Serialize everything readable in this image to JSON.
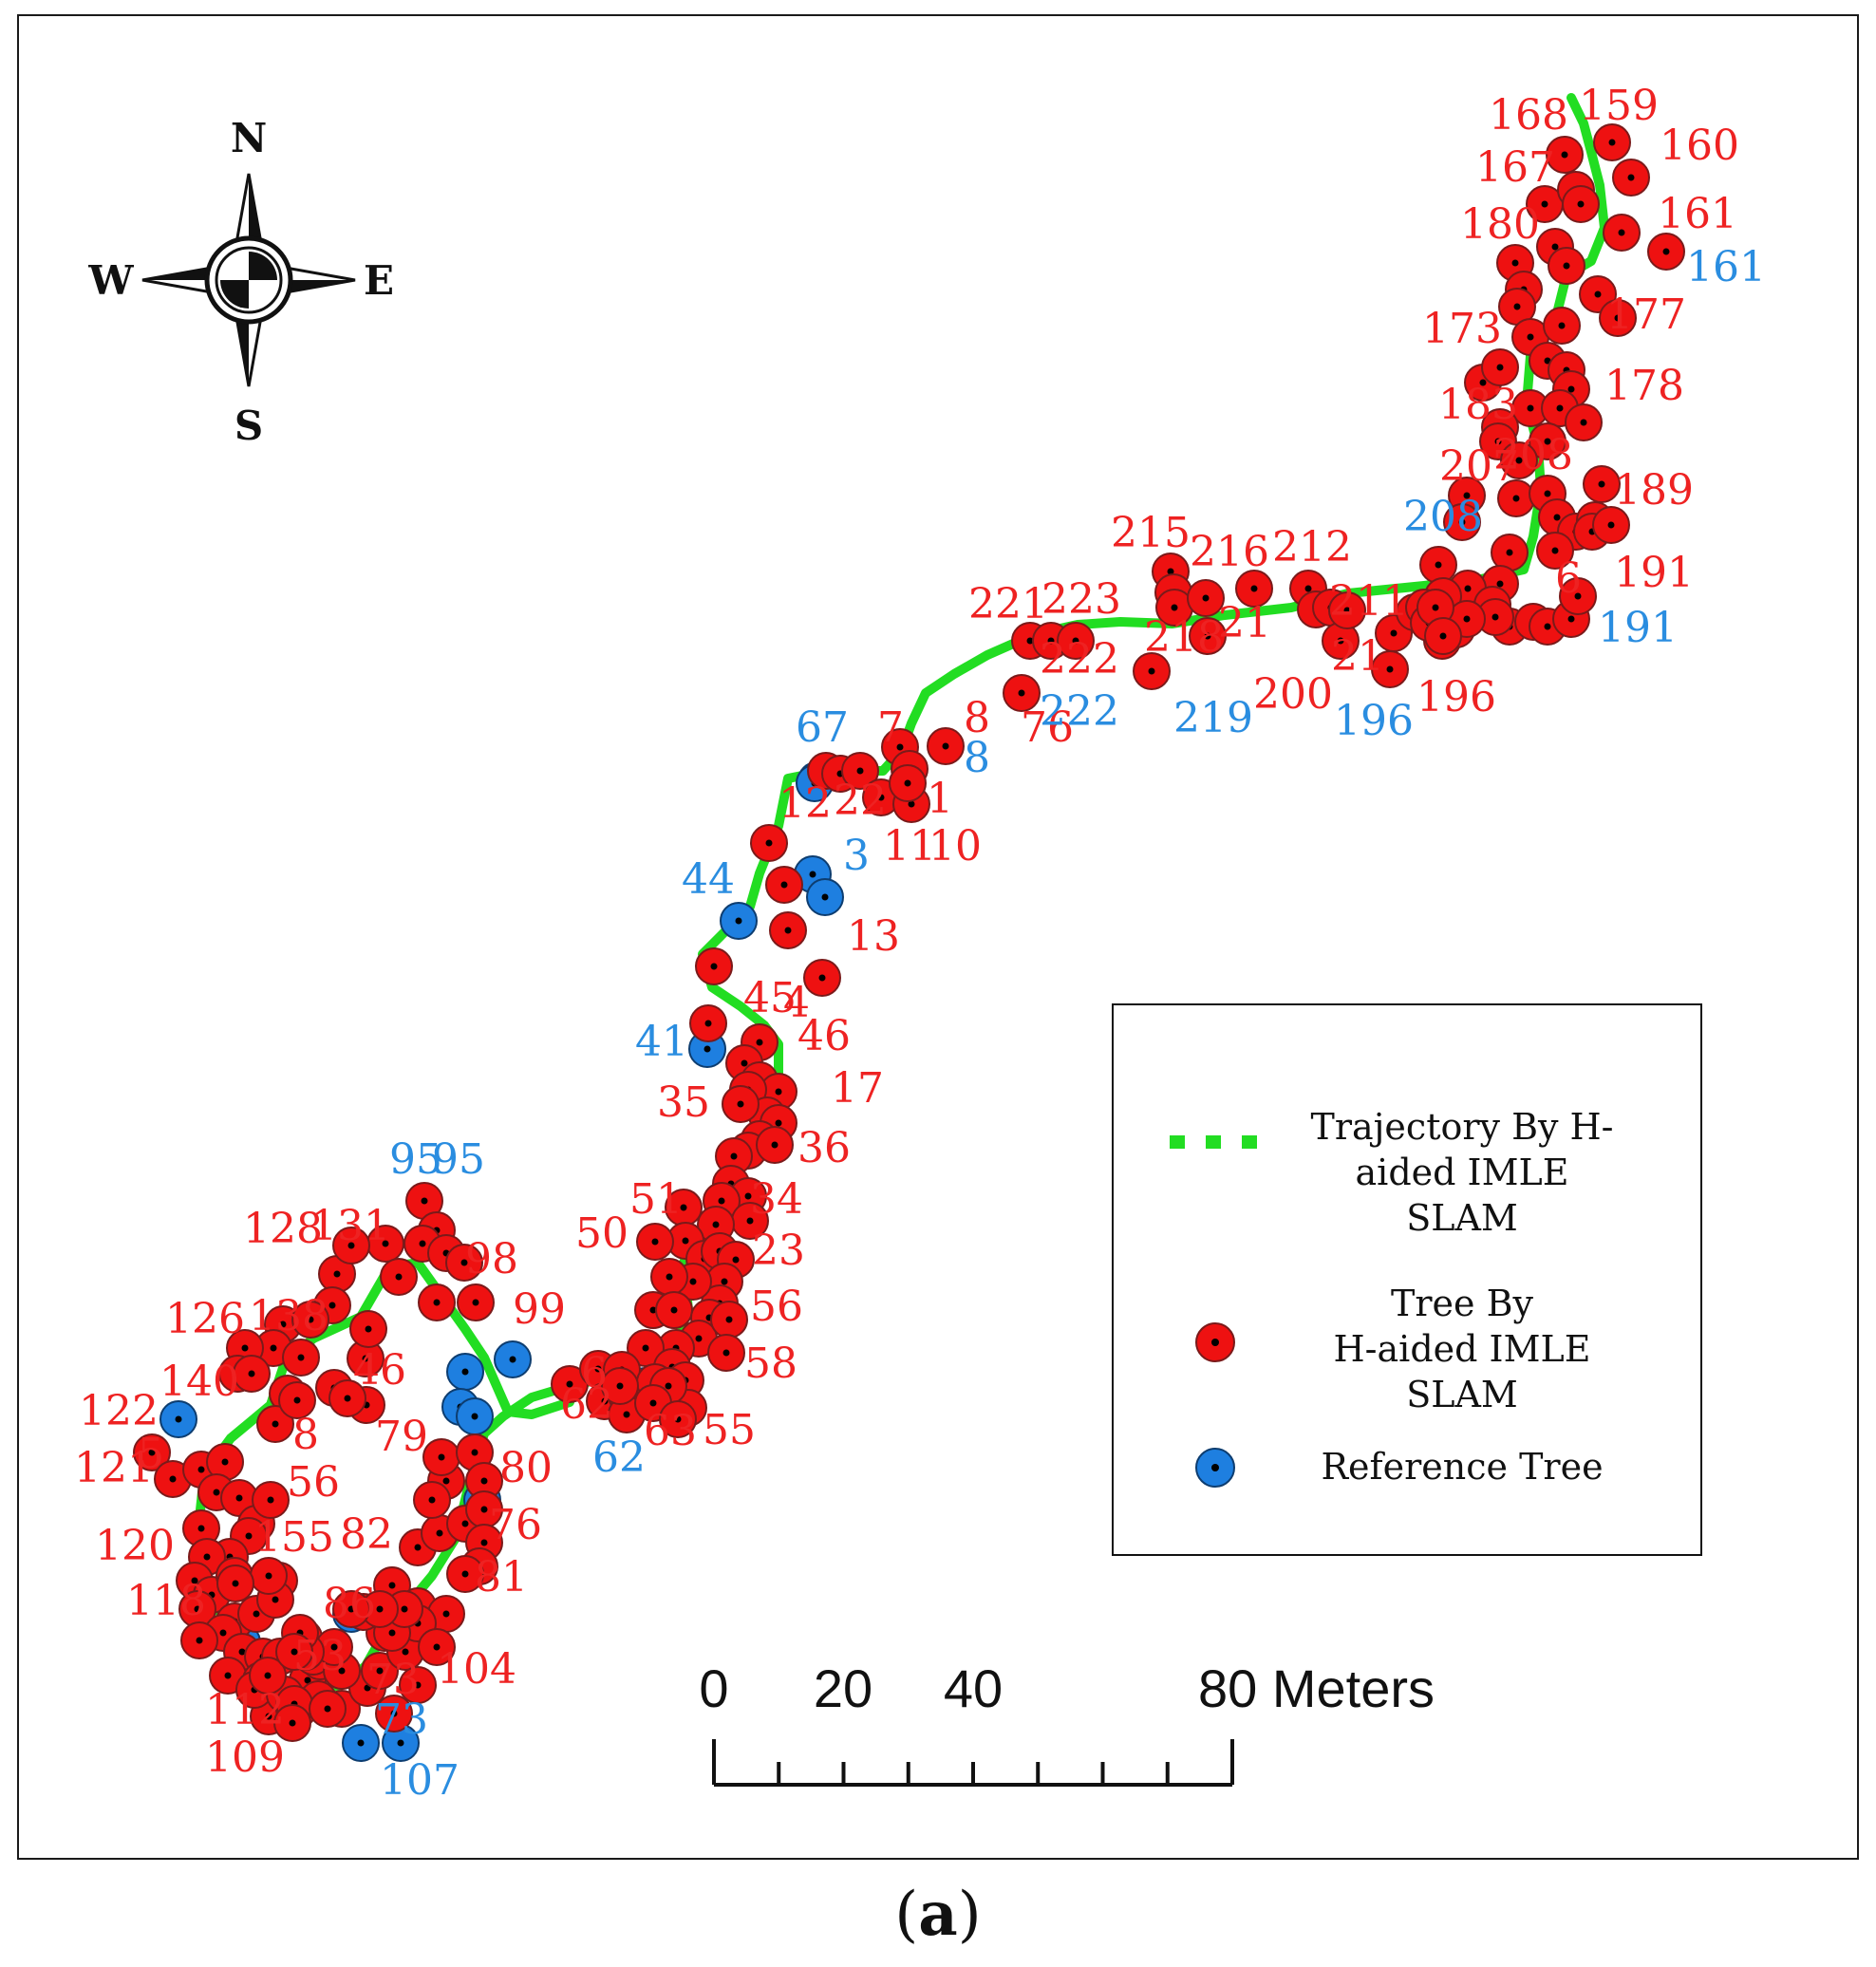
{
  "compass": {
    "n": "N",
    "s": "S",
    "e": "E",
    "w": "W"
  },
  "legend": {
    "trajectory_label": [
      "Trajectory By H-",
      "aided IMLE",
      "SLAM"
    ],
    "tree_label": [
      "Tree By",
      "H-aided IMLE",
      "SLAM"
    ],
    "reference_label": "Reference Tree"
  },
  "scale_bar": {
    "labels": [
      "0",
      "20",
      "40",
      "80 Meters"
    ],
    "ticks_m": [
      0,
      10,
      20,
      30,
      40,
      50,
      60,
      70,
      80
    ]
  },
  "caption": {
    "open": "(",
    "letter": "a",
    "close": ")"
  },
  "colors": {
    "tree": "#ee1111",
    "reference": "#1e7fe0",
    "trajectory": "#22dd22",
    "label_red": "#ee2222",
    "label_blue": "#2a8de0"
  },
  "trees_red": [
    [
      1698,
      150
    ],
    [
      1648,
      163
    ],
    [
      1718,
      187
    ],
    [
      1627,
      215
    ],
    [
      1660,
      200
    ],
    [
      1665,
      215
    ],
    [
      1708,
      245
    ],
    [
      1755,
      265
    ],
    [
      1596,
      277
    ],
    [
      1638,
      260
    ],
    [
      1650,
      280
    ],
    [
      1605,
      305
    ],
    [
      1598,
      323
    ],
    [
      1683,
      310
    ],
    [
      1704,
      335
    ],
    [
      1612,
      355
    ],
    [
      1645,
      343
    ],
    [
      1562,
      403
    ],
    [
      1580,
      387
    ],
    [
      1630,
      380
    ],
    [
      1650,
      390
    ],
    [
      1655,
      410
    ],
    [
      1612,
      430
    ],
    [
      1643,
      430
    ],
    [
      1668,
      445
    ],
    [
      1580,
      450
    ],
    [
      1578,
      465
    ],
    [
      1630,
      465
    ],
    [
      1600,
      485
    ],
    [
      1597,
      525
    ],
    [
      1630,
      520
    ],
    [
      1640,
      545
    ],
    [
      1660,
      560
    ],
    [
      1680,
      548
    ],
    [
      1687,
      510
    ],
    [
      1545,
      522
    ],
    [
      1540,
      550
    ],
    [
      1590,
      582
    ],
    [
      1638,
      580
    ],
    [
      1515,
      595
    ],
    [
      1580,
      615
    ],
    [
      1546,
      620
    ],
    [
      1572,
      637
    ],
    [
      1590,
      660
    ],
    [
      1520,
      628
    ],
    [
      1500,
      650
    ],
    [
      1519,
      675
    ],
    [
      1677,
      560
    ],
    [
      1697,
      553
    ],
    [
      1615,
      655
    ],
    [
      1630,
      660
    ],
    [
      1655,
      652
    ],
    [
      1662,
      628
    ],
    [
      1575,
      650
    ],
    [
      1233,
      602
    ],
    [
      1236,
      624
    ],
    [
      1237,
      640
    ],
    [
      1270,
      630
    ],
    [
      1321,
      620
    ],
    [
      1378,
      620
    ],
    [
      1386,
      642
    ],
    [
      1402,
      640
    ],
    [
      1412,
      675
    ],
    [
      1419,
      643
    ],
    [
      1468,
      667
    ],
    [
      1464,
      705
    ],
    [
      1490,
      645
    ],
    [
      1500,
      640
    ],
    [
      1505,
      656
    ],
    [
      1534,
      663
    ],
    [
      1545,
      652
    ],
    [
      1512,
      640
    ],
    [
      1520,
      670
    ],
    [
      1213,
      707
    ],
    [
      1272,
      670
    ],
    [
      1085,
      675
    ],
    [
      1107,
      675
    ],
    [
      1133,
      675
    ],
    [
      1076,
      730
    ],
    [
      870,
      812
    ],
    [
      885,
      815
    ],
    [
      906,
      812
    ],
    [
      948,
      787
    ],
    [
      996,
      786
    ],
    [
      958,
      810
    ],
    [
      928,
      840
    ],
    [
      960,
      847
    ],
    [
      956,
      825
    ],
    [
      810,
      888
    ],
    [
      826,
      932
    ],
    [
      830,
      980
    ],
    [
      866,
      1030
    ],
    [
      752,
      1018
    ],
    [
      746,
      1078
    ],
    [
      800,
      1098
    ],
    [
      784,
      1120
    ],
    [
      800,
      1138
    ],
    [
      820,
      1150
    ],
    [
      788,
      1148
    ],
    [
      808,
      1175
    ],
    [
      780,
      1163
    ],
    [
      820,
      1183
    ],
    [
      800,
      1200
    ],
    [
      788,
      1212
    ],
    [
      816,
      1206
    ],
    [
      773,
      1218
    ],
    [
      770,
      1247
    ],
    [
      788,
      1260
    ],
    [
      760,
      1265
    ],
    [
      790,
      1286
    ],
    [
      754,
      1290
    ],
    [
      720,
      1272
    ],
    [
      722,
      1307
    ],
    [
      742,
      1326
    ],
    [
      758,
      1318
    ],
    [
      775,
      1327
    ],
    [
      763,
      1350
    ],
    [
      758,
      1373
    ],
    [
      730,
      1350
    ],
    [
      705,
      1345
    ],
    [
      690,
      1308
    ],
    [
      688,
      1380
    ],
    [
      710,
      1380
    ],
    [
      747,
      1388
    ],
    [
      736,
      1410
    ],
    [
      768,
      1390
    ],
    [
      765,
      1425
    ],
    [
      712,
      1420
    ],
    [
      680,
      1420
    ],
    [
      708,
      1440
    ],
    [
      600,
      1458
    ],
    [
      630,
      1442
    ],
    [
      655,
      1443
    ],
    [
      637,
      1476
    ],
    [
      660,
      1470
    ],
    [
      690,
      1456
    ],
    [
      722,
      1454
    ],
    [
      660,
      1490
    ],
    [
      725,
      1483
    ],
    [
      704,
      1460
    ],
    [
      688,
      1478
    ],
    [
      653,
      1460
    ],
    [
      714,
      1495
    ],
    [
      447,
      1265
    ],
    [
      460,
      1296
    ],
    [
      445,
      1310
    ],
    [
      470,
      1320
    ],
    [
      489,
      1330
    ],
    [
      501,
      1372
    ],
    [
      460,
      1372
    ],
    [
      406,
      1310
    ],
    [
      420,
      1345
    ],
    [
      355,
      1342
    ],
    [
      370,
      1312
    ],
    [
      350,
      1375
    ],
    [
      298,
      1395
    ],
    [
      288,
      1420
    ],
    [
      258,
      1420
    ],
    [
      250,
      1447
    ],
    [
      265,
      1447
    ],
    [
      327,
      1390
    ],
    [
      317,
      1430
    ],
    [
      303,
      1468
    ],
    [
      290,
      1500
    ],
    [
      313,
      1475
    ],
    [
      352,
      1462
    ],
    [
      385,
      1431
    ],
    [
      386,
      1480
    ],
    [
      388,
      1400
    ],
    [
      366,
      1473
    ],
    [
      160,
      1530
    ],
    [
      182,
      1558
    ],
    [
      212,
      1548
    ],
    [
      237,
      1540
    ],
    [
      228,
      1572
    ],
    [
      252,
      1578
    ],
    [
      270,
      1605
    ],
    [
      285,
      1580
    ],
    [
      262,
      1618
    ],
    [
      242,
      1640
    ],
    [
      212,
      1610
    ],
    [
      218,
      1640
    ],
    [
      205,
      1665
    ],
    [
      223,
      1680
    ],
    [
      208,
      1695
    ],
    [
      247,
      1708
    ],
    [
      270,
      1700
    ],
    [
      235,
      1720
    ],
    [
      255,
      1740
    ],
    [
      240,
      1765
    ],
    [
      277,
      1745
    ],
    [
      294,
      1665
    ],
    [
      290,
      1685
    ],
    [
      247,
      1660
    ],
    [
      210,
      1728
    ],
    [
      275,
      1770
    ],
    [
      320,
      1725
    ],
    [
      295,
      1745
    ],
    [
      283,
      1660
    ],
    [
      248,
      1668
    ],
    [
      324,
      1770
    ],
    [
      315,
      1800
    ],
    [
      283,
      1808
    ],
    [
      268,
      1780
    ],
    [
      310,
      1800
    ],
    [
      300,
      1785
    ],
    [
      335,
      1790
    ],
    [
      282,
      1765
    ],
    [
      337,
      1750
    ],
    [
      330,
      1745
    ],
    [
      360,
      1800
    ],
    [
      387,
      1778
    ],
    [
      360,
      1760
    ],
    [
      400,
      1760
    ],
    [
      427,
      1740
    ],
    [
      405,
      1720
    ],
    [
      383,
      1698
    ],
    [
      413,
      1670
    ],
    [
      440,
      1692
    ],
    [
      440,
      1630
    ],
    [
      463,
      1615
    ],
    [
      490,
      1605
    ],
    [
      470,
      1560
    ],
    [
      465,
      1535
    ],
    [
      455,
      1580
    ],
    [
      500,
      1530
    ],
    [
      510,
      1560
    ],
    [
      510,
      1590
    ],
    [
      510,
      1625
    ],
    [
      505,
      1650
    ],
    [
      490,
      1658
    ],
    [
      470,
      1700
    ],
    [
      440,
      1710
    ],
    [
      460,
      1735
    ],
    [
      413,
      1720
    ],
    [
      426,
      1695
    ],
    [
      400,
      1695
    ],
    [
      370,
      1695
    ],
    [
      415,
      1805
    ],
    [
      440,
      1775
    ],
    [
      352,
      1735
    ],
    [
      322,
      1740
    ],
    [
      316,
      1720
    ],
    [
      310,
      1740
    ],
    [
      310,
      1795
    ],
    [
      308,
      1815
    ],
    [
      345,
      1800
    ]
  ],
  "trees_blue": [
    [
      860,
      822
    ],
    [
      858,
      825
    ],
    [
      856,
      921
    ],
    [
      869,
      945
    ],
    [
      778,
      970
    ],
    [
      745,
      1105
    ],
    [
      508,
      1580
    ],
    [
      490,
      1445
    ],
    [
      540,
      1432
    ],
    [
      188,
      1495
    ],
    [
      255,
      1730
    ],
    [
      380,
      1836
    ],
    [
      422,
      1836
    ],
    [
      370,
      1700
    ],
    [
      485,
      1482
    ],
    [
      500,
      1492
    ],
    [
      680,
      1460
    ]
  ],
  "labels_red": [
    [
      "168",
      1568,
      120
    ],
    [
      "159",
      1663,
      110
    ],
    [
      "160",
      1748,
      152
    ],
    [
      "167",
      1554,
      175
    ],
    [
      "180",
      1538,
      235
    ],
    [
      "161",
      1746,
      224
    ],
    [
      "173",
      1498,
      345
    ],
    [
      "177",
      1692,
      330
    ],
    [
      "178",
      1690,
      405
    ],
    [
      "183",
      1515,
      425
    ],
    [
      "207",
      1516,
      490
    ],
    [
      "208",
      1573,
      478
    ],
    [
      "189",
      1700,
      515
    ],
    [
      "215",
      1170,
      560
    ],
    [
      "216",
      1253,
      580
    ],
    [
      "212",
      1340,
      575
    ],
    [
      "221",
      1020,
      635
    ],
    [
      "223",
      1097,
      630
    ],
    [
      "222",
      1095,
      693
    ],
    [
      "218",
      1205,
      670
    ],
    [
      "21",
      1283,
      655
    ],
    [
      "211",
      1400,
      632
    ],
    [
      "200",
      1320,
      730
    ],
    [
      "21",
      1402,
      690
    ],
    [
      "196",
      1492,
      733
    ],
    [
      "191",
      1700,
      602
    ],
    [
      "6",
      1638,
      608
    ],
    [
      "76",
      1075,
      765
    ],
    [
      "7",
      924,
      765
    ],
    [
      "8",
      1015,
      755
    ],
    [
      "12",
      820,
      845
    ],
    [
      "22",
      878,
      842
    ],
    [
      "1",
      976,
      840
    ],
    [
      "11",
      930,
      890
    ],
    [
      "10",
      978,
      890
    ],
    [
      "13",
      892,
      985
    ],
    [
      "4",
      825,
      1055
    ],
    [
      "45",
      783,
      1050
    ],
    [
      "46",
      840,
      1090
    ],
    [
      "17",
      875,
      1145
    ],
    [
      "35",
      692,
      1160
    ],
    [
      "36",
      840,
      1208
    ],
    [
      "34",
      790,
      1262
    ],
    [
      "23",
      792,
      1316
    ],
    [
      "51",
      663,
      1262
    ],
    [
      "50",
      606,
      1298
    ],
    [
      "56",
      790,
      1375
    ],
    [
      "58",
      784,
      1435
    ],
    [
      "55",
      740,
      1505
    ],
    [
      "63",
      678,
      1506
    ],
    [
      "62",
      590,
      1478
    ],
    [
      "6",
      612,
      1445
    ],
    [
      "128",
      256,
      1293
    ],
    [
      "131",
      327,
      1290
    ],
    [
      "98",
      490,
      1325
    ],
    [
      "99",
      540,
      1378
    ],
    [
      "126",
      174,
      1388
    ],
    [
      "138",
      262,
      1385
    ],
    [
      "46",
      372,
      1442
    ],
    [
      "140",
      168,
      1454
    ],
    [
      "122",
      83,
      1485
    ],
    [
      "121",
      78,
      1545
    ],
    [
      "79",
      395,
      1512
    ],
    [
      "80",
      526,
      1545
    ],
    [
      "56",
      302,
      1560
    ],
    [
      "8",
      308,
      1510
    ],
    [
      "76",
      515,
      1605
    ],
    [
      "120",
      100,
      1627
    ],
    [
      "155",
      268,
      1618
    ],
    [
      "82",
      358,
      1615
    ],
    [
      "81",
      500,
      1660
    ],
    [
      "118",
      133,
      1685
    ],
    [
      "86",
      340,
      1688
    ],
    [
      "104",
      460,
      1757
    ],
    [
      "73",
      386,
      1768
    ],
    [
      "53",
      309,
      1743
    ],
    [
      "112",
      216,
      1800
    ],
    [
      "109",
      216,
      1850
    ],
    [
      "5",
      145,
      1530
    ]
  ],
  "labels_blue": [
    [
      "67",
      838,
      765
    ],
    [
      "8",
      1015,
      797
    ],
    [
      "222",
      1095,
      748
    ],
    [
      "219",
      1236,
      755
    ],
    [
      "196",
      1405,
      758
    ],
    [
      "191",
      1683,
      660
    ],
    [
      "161",
      1776,
      280
    ],
    [
      "208",
      1478,
      543
    ],
    [
      "3",
      888,
      900
    ],
    [
      "44",
      718,
      925
    ],
    [
      "41",
      669,
      1096
    ],
    [
      "95",
      410,
      1220
    ],
    [
      "95",
      455,
      1220
    ],
    [
      "62",
      624,
      1534
    ],
    [
      "73",
      395,
      1810
    ],
    [
      "107",
      400,
      1874
    ]
  ],
  "trajectory_m": [
    [
      1655,
      103
    ],
    [
      1668,
      130
    ],
    [
      1676,
      160
    ],
    [
      1685,
      195
    ],
    [
      1690,
      240
    ],
    [
      1676,
      275
    ],
    [
      1650,
      290
    ],
    [
      1640,
      330
    ],
    [
      1612,
      375
    ],
    [
      1608,
      425
    ],
    [
      1620,
      470
    ],
    [
      1623,
      515
    ],
    [
      1615,
      565
    ],
    [
      1605,
      600
    ],
    [
      1560,
      610
    ],
    [
      1500,
      617
    ],
    [
      1420,
      625
    ],
    [
      1360,
      640
    ],
    [
      1290,
      648
    ],
    [
      1235,
      657
    ],
    [
      1180,
      655
    ],
    [
      1135,
      658
    ],
    [
      1090,
      668
    ],
    [
      1040,
      690
    ],
    [
      1005,
      710
    ],
    [
      975,
      730
    ],
    [
      960,
      762
    ],
    [
      950,
      790
    ],
    [
      930,
      812
    ],
    [
      905,
      812
    ],
    [
      870,
      812
    ],
    [
      830,
      820
    ],
    [
      820,
      870
    ],
    [
      800,
      920
    ],
    [
      790,
      955
    ],
    [
      760,
      985
    ],
    [
      740,
      1005
    ],
    [
      750,
      1040
    ],
    [
      780,
      1060
    ],
    [
      805,
      1080
    ],
    [
      820,
      1100
    ],
    [
      820,
      1150
    ],
    [
      810,
      1180
    ],
    [
      795,
      1200
    ],
    [
      775,
      1230
    ],
    [
      770,
      1270
    ],
    [
      760,
      1295
    ],
    [
      730,
      1310
    ],
    [
      720,
      1330
    ],
    [
      725,
      1380
    ],
    [
      715,
      1405
    ],
    [
      700,
      1435
    ],
    [
      680,
      1447
    ],
    [
      645,
      1450
    ],
    [
      600,
      1460
    ],
    [
      560,
      1472
    ],
    [
      530,
      1492
    ],
    [
      510,
      1510
    ],
    [
      495,
      1560
    ],
    [
      480,
      1620
    ],
    [
      455,
      1660
    ],
    [
      430,
      1690
    ],
    [
      405,
      1720
    ],
    [
      385,
      1755
    ],
    [
      360,
      1775
    ],
    [
      325,
      1780
    ],
    [
      300,
      1770
    ],
    [
      278,
      1743
    ],
    [
      255,
      1720
    ],
    [
      228,
      1695
    ],
    [
      215,
      1650
    ],
    [
      210,
      1600
    ],
    [
      215,
      1553
    ],
    [
      243,
      1515
    ],
    [
      285,
      1480
    ],
    [
      300,
      1435
    ],
    [
      330,
      1410
    ],
    [
      380,
      1387
    ],
    [
      410,
      1335
    ],
    [
      440,
      1330
    ],
    [
      465,
      1365
    ],
    [
      490,
      1400
    ],
    [
      510,
      1430
    ],
    [
      535,
      1487
    ],
    [
      560,
      1490
    ],
    [
      600,
      1477
    ]
  ]
}
